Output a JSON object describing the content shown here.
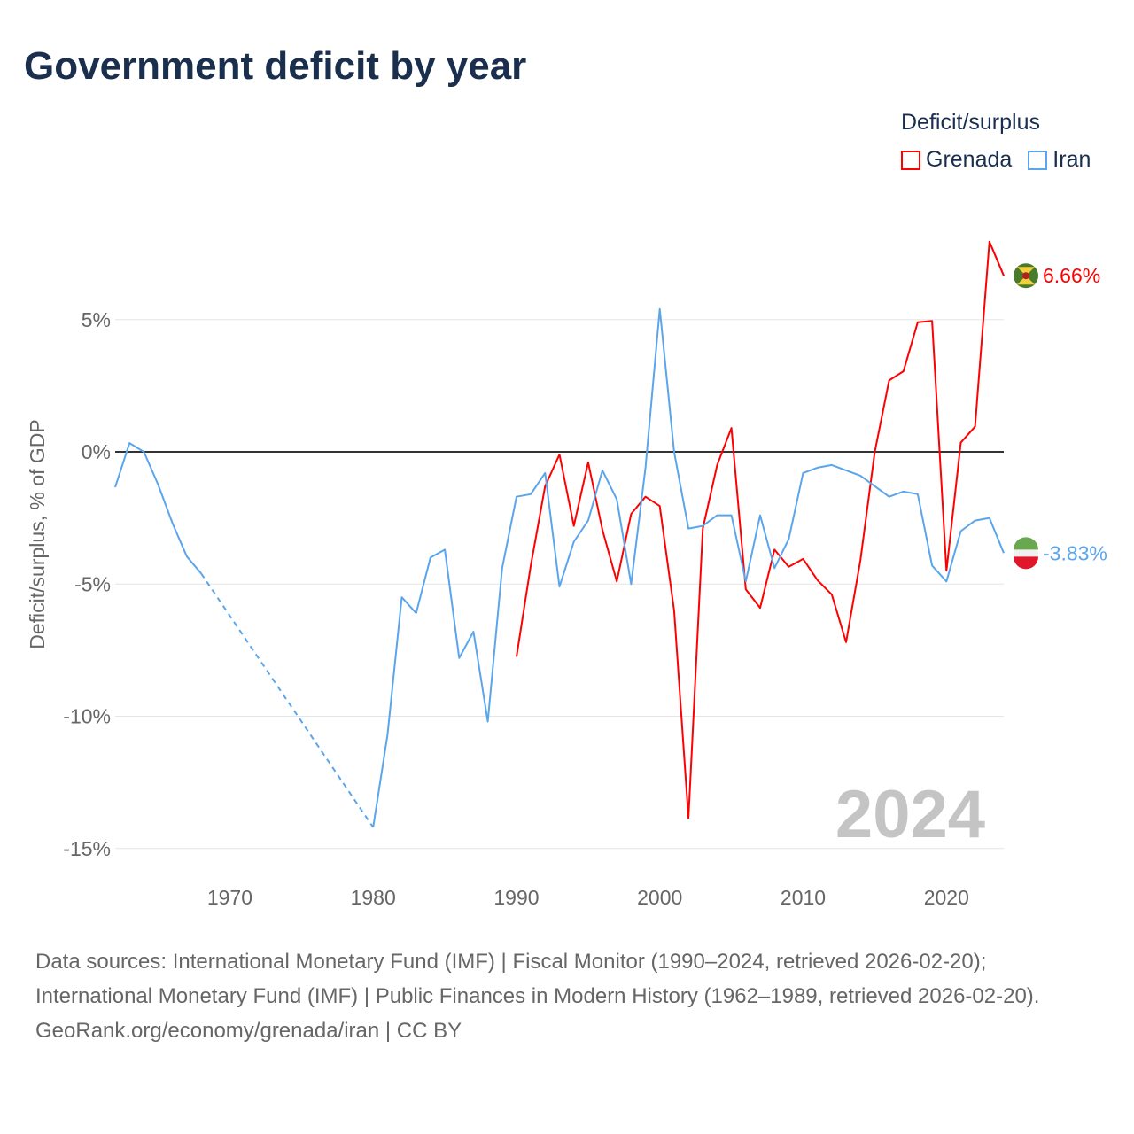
{
  "title": "Government deficit by year",
  "legend": {
    "title": "Deficit/surplus",
    "items": [
      {
        "name": "Grenada",
        "color": "#ff0000"
      },
      {
        "name": "Iran",
        "color": "#5aa5ec"
      }
    ]
  },
  "chart_data": {
    "type": "line",
    "title": "Government deficit by year",
    "ylabel": "Deficit/surplus, % of GDP",
    "xlabel": "",
    "xlim": [
      1962,
      2024
    ],
    "ylim": [
      -16,
      9
    ],
    "xticks": [
      1970,
      1980,
      1990,
      2000,
      2010,
      2020
    ],
    "xtick_labels": [
      "1970",
      "1980",
      "1990",
      "2000",
      "2010",
      "2020"
    ],
    "yticks": [
      5,
      0,
      -5,
      -10,
      -15
    ],
    "ytick_labels": [
      "5%",
      "0%",
      "-5%",
      "-10%",
      "-15%"
    ],
    "grid": true,
    "year_watermark": "2024",
    "series": [
      {
        "name": "Grenada",
        "color": "#ff0000",
        "end_label": "6.66%",
        "x": [
          1990,
          1991,
          1992,
          1993,
          1994,
          1995,
          1996,
          1997,
          1998,
          1999,
          2000,
          2001,
          2002,
          2003,
          2004,
          2005,
          2006,
          2007,
          2008,
          2009,
          2010,
          2011,
          2012,
          2013,
          2014,
          2015,
          2016,
          2017,
          2018,
          2019,
          2020,
          2021,
          2022,
          2023,
          2024
        ],
        "values": [
          -7.75,
          -4.3,
          -1.3,
          -0.1,
          -2.8,
          -0.4,
          -2.95,
          -4.9,
          -2.35,
          -1.7,
          -2.05,
          -6.0,
          -13.85,
          -2.9,
          -0.5,
          0.9,
          -5.2,
          -5.9,
          -3.7,
          -4.35,
          -4.05,
          -4.85,
          -5.4,
          -7.2,
          -4.1,
          0,
          2.7,
          3.05,
          4.9,
          4.95,
          -4.5,
          0.35,
          0.95,
          7.95,
          6.66
        ]
      },
      {
        "name": "Iran",
        "color": "#5aa5ec",
        "end_label": "-3.83%",
        "x": [
          1962,
          1963,
          1964,
          1965,
          1966,
          1967,
          1968,
          1980,
          1981,
          1982,
          1983,
          1984,
          1985,
          1986,
          1987,
          1988,
          1989,
          1990,
          1991,
          1992,
          1993,
          1994,
          1995,
          1996,
          1997,
          1998,
          1999,
          2000,
          2001,
          2002,
          2003,
          2004,
          2005,
          2006,
          2007,
          2008,
          2009,
          2010,
          2011,
          2012,
          2013,
          2014,
          2015,
          2016,
          2017,
          2018,
          2019,
          2020,
          2021,
          2022,
          2023,
          2024
        ],
        "values": [
          -1.34,
          0.33,
          0,
          -1.24,
          -2.7,
          -3.96,
          -4.6,
          -14.2,
          -10.7,
          -5.5,
          -6.1,
          -4.0,
          -3.7,
          -7.8,
          -6.8,
          -10.2,
          -4.4,
          -1.7,
          -1.6,
          -0.8,
          -5.1,
          -3.4,
          -2.6,
          -0.7,
          -1.8,
          -5.0,
          -0.6,
          5.4,
          0,
          -2.9,
          -2.8,
          -2.4,
          -2.4,
          -4.9,
          -2.4,
          -4.4,
          -3.3,
          -0.8,
          -0.6,
          -0.5,
          -0.7,
          -0.9,
          -1.3,
          -1.7,
          -1.5,
          -1.6,
          -4.3,
          -4.9,
          -3.0,
          -2.6,
          -2.5,
          -3.83
        ]
      }
    ]
  },
  "footer": {
    "sources": "Data sources: International Monetary Fund (IMF) | Fiscal Monitor (1990–2024, retrieved 2026-02-20); International Monetary Fund (IMF) | Public Finances in Modern History (1962–1989, retrieved 2026-02-20).",
    "credit": "GeoRank.org/economy/grenada/iran | CC BY"
  }
}
